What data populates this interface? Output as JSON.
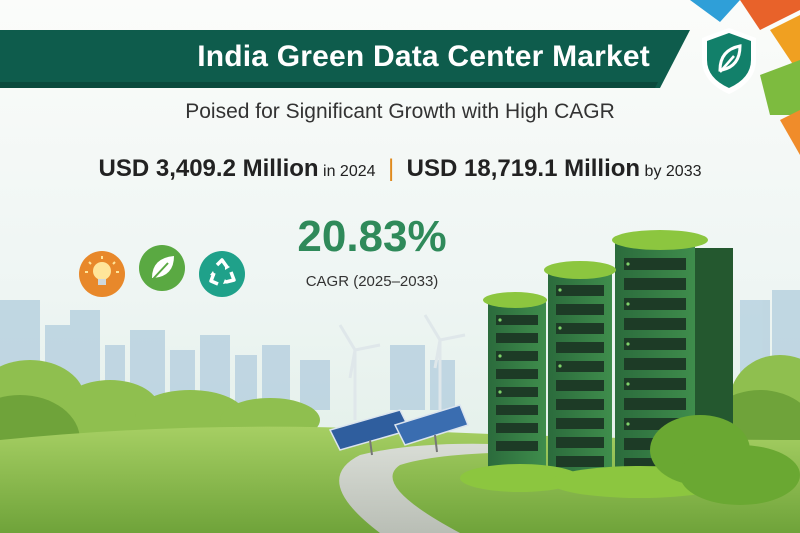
{
  "header": {
    "title": "India Green Data Center Market",
    "subtitle": "Poised for Significant Growth with High CAGR"
  },
  "stats": {
    "value_2024": "USD 3,409.2 Million",
    "suffix_2024": "in 2024",
    "separator": "|",
    "value_2033": "USD 18,719.1 Million",
    "suffix_2033": "by 2033"
  },
  "cagr": {
    "value": "20.83%",
    "label": "CAGR (2025–2033)"
  },
  "icons": [
    "lightbulb-icon",
    "leaf-icon",
    "recycle-icon",
    "shield-leaf-icon"
  ],
  "colors": {
    "banner": "#0e5c4c",
    "cagr": "#2f8a5a",
    "accent_orange": "#e8882a",
    "accent_green": "#4caf50",
    "accent_teal": "#1fa18a",
    "separator": "#e08a1e"
  }
}
